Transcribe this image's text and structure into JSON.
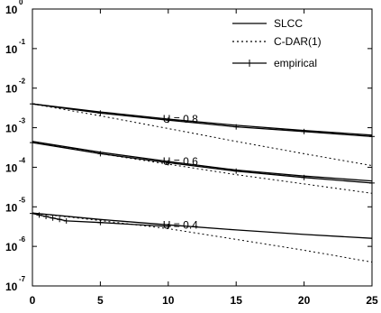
{
  "chart_data": {
    "type": "line",
    "title": "",
    "xlabel": "",
    "ylabel": "",
    "x_axis": {
      "range": [
        0,
        25
      ],
      "ticks": [
        0,
        5,
        10,
        15,
        20,
        25
      ],
      "tick_labels": [
        "0",
        "5",
        "10",
        "15",
        "20",
        "25"
      ]
    },
    "y_axis": {
      "scale": "log",
      "range": [
        1e-07,
        1
      ],
      "ticks": [
        1e-07,
        1e-06,
        1e-05,
        0.0001,
        0.001,
        0.01,
        0.1,
        1
      ],
      "tick_base": "10",
      "tick_exponents": [
        "-7",
        "-6",
        "-5",
        "-4",
        "-3",
        "-2",
        "-1",
        "0"
      ]
    },
    "grid": false,
    "legend": {
      "placement": "top-right",
      "entries": [
        {
          "label": "SLCC",
          "style": "solid"
        },
        {
          "label": "C-DAR(1)",
          "style": "dotted"
        },
        {
          "label": "empirical",
          "style": "solid-plus-markers"
        }
      ]
    },
    "groups": [
      {
        "annotation": "U = 0.8",
        "annotation_x": 10,
        "series": [
          {
            "style": "solid",
            "x": [
              0,
              5,
              10,
              15,
              20,
              25
            ],
            "y": [
              0.004,
              0.0025,
              0.00165,
              0.00115,
              0.00085,
              0.00065
            ]
          },
          {
            "style": "dotted",
            "x": [
              0,
              5,
              10,
              15,
              20,
              25
            ],
            "y": [
              0.004,
              0.002,
              0.00095,
              0.00045,
              0.00022,
              0.00011
            ]
          },
          {
            "style": "empirical",
            "x": [
              0,
              5,
              10,
              15,
              20,
              25
            ],
            "y": [
              0.004,
              0.00235,
              0.00155,
              0.00105,
              0.0008,
              0.0006
            ]
          }
        ]
      },
      {
        "annotation": "U = 0.6",
        "annotation_x": 10,
        "series": [
          {
            "style": "solid",
            "x": [
              0,
              5,
              10,
              15,
              20,
              25
            ],
            "y": [
              0.00045,
              0.00024,
              0.00014,
              8.5e-05,
              6e-05,
              4.5e-05
            ]
          },
          {
            "style": "dotted",
            "x": [
              0,
              5,
              10,
              15,
              20,
              25
            ],
            "y": [
              0.00045,
              0.00022,
              0.00012,
              6.5e-05,
              3.8e-05,
              2.2e-05
            ]
          },
          {
            "style": "empirical",
            "x": [
              0,
              5,
              10,
              15,
              20,
              25
            ],
            "y": [
              0.00042,
              0.00022,
              0.00013,
              8e-05,
              5.5e-05,
              4e-05
            ]
          }
        ]
      },
      {
        "annotation": "U = 0.4",
        "annotation_x": 10,
        "series": [
          {
            "style": "solid",
            "x": [
              0,
              5,
              10,
              15,
              20,
              25
            ],
            "y": [
              7e-06,
              4.8e-06,
              3.5e-06,
              2.6e-06,
              2e-06,
              1.6e-06
            ]
          },
          {
            "style": "dotted",
            "x": [
              0,
              5,
              10,
              15,
              20,
              25
            ],
            "y": [
              7e-06,
              4.5e-06,
              2.8e-06,
              1.5e-06,
              8e-07,
              4e-07
            ]
          },
          {
            "style": "empirical",
            "x": [
              0,
              0.5,
              1,
              1.5,
              2,
              2.5,
              5,
              10
            ],
            "y": [
              6.8e-06,
              6.2e-06,
              5.7e-06,
              5.2e-06,
              4.8e-06,
              4.4e-06,
              4e-06,
              3.2e-06
            ]
          }
        ]
      }
    ]
  }
}
